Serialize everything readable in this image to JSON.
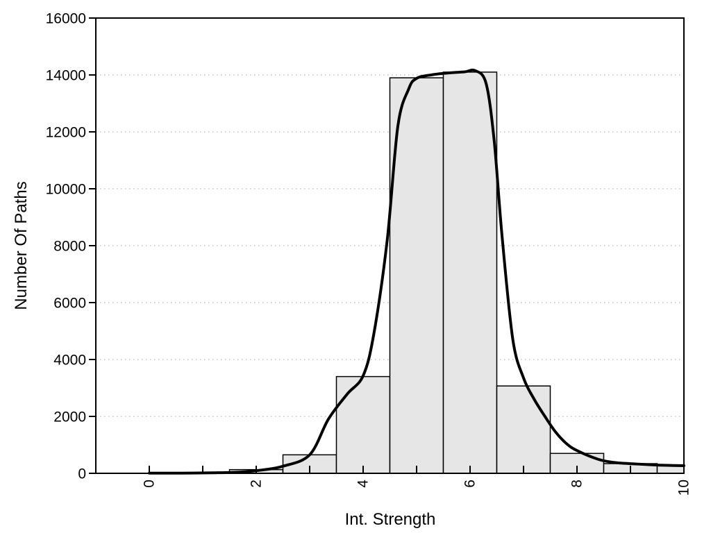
{
  "chart_data": {
    "type": "bar",
    "subtype": "histogram-with-fit-curve",
    "title": "",
    "xlabel": "Int. Strength",
    "ylabel": "Number Of Paths",
    "xlim": [
      -1,
      10
    ],
    "ylim": [
      0,
      16000
    ],
    "x_major_ticks": [
      0,
      2,
      4,
      6,
      8,
      10
    ],
    "x_minor_ticks": [
      1,
      3,
      5,
      7,
      9
    ],
    "x_tick_labels": [
      "0",
      "2",
      "4",
      "6",
      "8",
      "10"
    ],
    "x_tick_label_rotation": -90,
    "y_ticks": [
      0,
      2000,
      4000,
      6000,
      8000,
      10000,
      12000,
      14000,
      16000
    ],
    "y_tick_labels": [
      "0",
      "2000",
      "4000",
      "6000",
      "8000",
      "10000",
      "12000",
      "14000",
      "16000"
    ],
    "grid": "horizontal-dotted",
    "legend": "none",
    "colors": {
      "bar_fill": "#e6e6e6",
      "bar_edge": "#000000",
      "curve": "#000000",
      "grid": "#c4c4c4",
      "axis": "#000000"
    },
    "bins": {
      "width": 1,
      "centers": [
        2,
        3,
        4,
        5,
        6,
        7,
        8,
        9,
        10
      ],
      "counts": [
        130,
        650,
        3400,
        13900,
        14100,
        3070,
        700,
        340,
        290
      ]
    },
    "curve": {
      "x": [
        0,
        0.6,
        1.2,
        1.7,
        2.1,
        2.5,
        3.0,
        3.35,
        3.7,
        4.0,
        4.2,
        4.45,
        4.65,
        4.85,
        5.0,
        5.3,
        5.6,
        5.9,
        6.1,
        6.3,
        6.45,
        6.6,
        6.8,
        7.0,
        7.2,
        7.4,
        7.6,
        7.8,
        8.0,
        8.4,
        8.7,
        9.0,
        9.4,
        9.7,
        10.0
      ],
      "y": [
        5,
        8,
        18,
        45,
        115,
        250,
        650,
        1900,
        2780,
        3430,
        4900,
        8200,
        12200,
        13500,
        13880,
        14010,
        14070,
        14110,
        14150,
        13700,
        11700,
        8300,
        4700,
        3350,
        2600,
        2000,
        1450,
        1050,
        800,
        490,
        380,
        340,
        300,
        280,
        268
      ]
    }
  }
}
